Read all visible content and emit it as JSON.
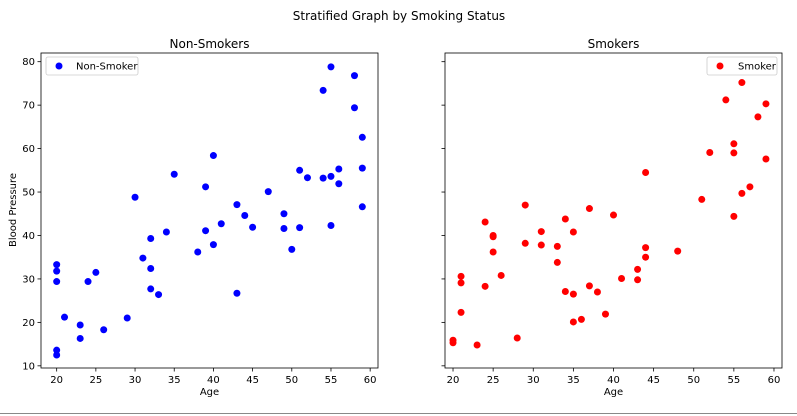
{
  "figure": {
    "suptitle": "Stratified Graph by Smoking Status",
    "shared_y": true,
    "colors": {
      "non_smoker": "#0000ff",
      "smoker": "#ff0000"
    }
  },
  "chart_data": [
    {
      "type": "scatter",
      "title": "Non-Smokers",
      "xlabel": "Age",
      "ylabel": "Blood Pressure",
      "xlim": [
        18.0,
        61.0
      ],
      "ylim": [
        9.5,
        82.0
      ],
      "xticks": [
        20,
        25,
        30,
        35,
        40,
        45,
        50,
        55,
        60
      ],
      "yticks": [
        10,
        20,
        30,
        40,
        50,
        60,
        70,
        80
      ],
      "grid": false,
      "legend": {
        "position": "upper left",
        "entries": [
          "Non-Smoker"
        ]
      },
      "series": [
        {
          "name": "Non-Smoker",
          "color": "#0000ff",
          "points": [
            [
              20,
              33.3
            ],
            [
              20,
              31.8
            ],
            [
              20,
              29.4
            ],
            [
              20,
              13.6
            ],
            [
              20,
              12.5
            ],
            [
              21,
              21.2
            ],
            [
              23,
              19.4
            ],
            [
              23,
              16.3
            ],
            [
              24,
              29.4
            ],
            [
              25,
              31.5
            ],
            [
              26,
              18.3
            ],
            [
              29,
              21.0
            ],
            [
              30,
              48.8
            ],
            [
              31,
              34.8
            ],
            [
              32,
              39.3
            ],
            [
              32,
              32.4
            ],
            [
              32,
              27.7
            ],
            [
              33,
              26.4
            ],
            [
              34,
              40.8
            ],
            [
              35,
              54.1
            ],
            [
              38,
              36.2
            ],
            [
              39,
              51.2
            ],
            [
              39,
              41.1
            ],
            [
              40,
              58.4
            ],
            [
              40,
              37.9
            ],
            [
              41,
              42.7
            ],
            [
              43,
              47.1
            ],
            [
              43,
              26.7
            ],
            [
              44,
              44.6
            ],
            [
              45,
              41.9
            ],
            [
              47,
              50.1
            ],
            [
              49,
              45.0
            ],
            [
              49,
              41.6
            ],
            [
              50,
              36.8
            ],
            [
              51,
              55.0
            ],
            [
              51,
              41.8
            ],
            [
              52,
              53.3
            ],
            [
              54,
              73.4
            ],
            [
              54,
              53.2
            ],
            [
              55,
              78.8
            ],
            [
              55,
              53.6
            ],
            [
              55,
              42.3
            ],
            [
              56,
              55.3
            ],
            [
              56,
              51.9
            ],
            [
              58,
              76.8
            ],
            [
              58,
              69.4
            ],
            [
              59,
              62.6
            ],
            [
              59,
              55.5
            ],
            [
              59,
              46.6
            ]
          ]
        }
      ]
    },
    {
      "type": "scatter",
      "title": "Smokers",
      "xlabel": "Age",
      "ylabel": "",
      "xlim": [
        19.0,
        61.0
      ],
      "ylim": [
        9.5,
        82.0
      ],
      "xticks": [
        20,
        25,
        30,
        35,
        40,
        45,
        50,
        55,
        60
      ],
      "yticks": [
        10,
        20,
        30,
        40,
        50,
        60,
        70,
        80
      ],
      "show_ytick_labels": false,
      "grid": false,
      "legend": {
        "position": "upper right",
        "entries": [
          "Smoker"
        ]
      },
      "series": [
        {
          "name": "Smoker",
          "color": "#ff0000",
          "points": [
            [
              20,
              15.9
            ],
            [
              20,
              15.3
            ],
            [
              21,
              30.6
            ],
            [
              21,
              29.1
            ],
            [
              21,
              22.3
            ],
            [
              23,
              14.8
            ],
            [
              24,
              43.1
            ],
            [
              24,
              28.3
            ],
            [
              25,
              40.0
            ],
            [
              25,
              39.7
            ],
            [
              25,
              36.2
            ],
            [
              26,
              30.8
            ],
            [
              28,
              16.4
            ],
            [
              29,
              47.0
            ],
            [
              29,
              38.2
            ],
            [
              31,
              40.9
            ],
            [
              31,
              37.8
            ],
            [
              33,
              37.5
            ],
            [
              33,
              33.8
            ],
            [
              34,
              43.8
            ],
            [
              34,
              27.1
            ],
            [
              35,
              40.8
            ],
            [
              35,
              26.5
            ],
            [
              35,
              20.1
            ],
            [
              36,
              20.7
            ],
            [
              37,
              46.2
            ],
            [
              37,
              28.4
            ],
            [
              38,
              27.0
            ],
            [
              39,
              21.9
            ],
            [
              40,
              44.7
            ],
            [
              41,
              30.1
            ],
            [
              43,
              32.2
            ],
            [
              43,
              29.8
            ],
            [
              44,
              54.5
            ],
            [
              44,
              37.2
            ],
            [
              44,
              35.0
            ],
            [
              48,
              36.4
            ],
            [
              51,
              48.3
            ],
            [
              52,
              59.1
            ],
            [
              54,
              71.2
            ],
            [
              55,
              61.1
            ],
            [
              55,
              59.0
            ],
            [
              55,
              44.4
            ],
            [
              56,
              75.2
            ],
            [
              56,
              49.7
            ],
            [
              57,
              51.2
            ],
            [
              58,
              67.3
            ],
            [
              59,
              70.3
            ],
            [
              59,
              57.6
            ]
          ]
        }
      ]
    }
  ]
}
